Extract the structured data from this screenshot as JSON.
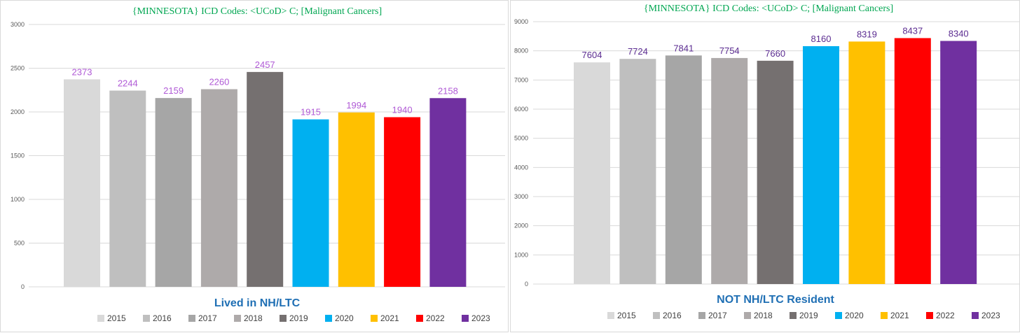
{
  "chart_data": [
    {
      "type": "bar",
      "title": "{MINNESOTA}   ICD Codes: <UCoD> C;  [Malignant Cancers]",
      "caption": "Lived in NH/LTC",
      "categories": [
        "2015",
        "2016",
        "2017",
        "2018",
        "2019",
        "2020",
        "2021",
        "2022",
        "2023"
      ],
      "values": [
        2373,
        2244,
        2159,
        2260,
        2457,
        1915,
        1994,
        1940,
        2158
      ],
      "colors": [
        "#d9d9d9",
        "#bfbfbf",
        "#a6a6a6",
        "#aeaaaa",
        "#757070",
        "#00b0f0",
        "#ffc000",
        "#ff0000",
        "#7030a0"
      ],
      "ylim": [
        0,
        3000
      ],
      "yticks": [
        0,
        500,
        1000,
        1500,
        2000,
        2500,
        3000
      ],
      "grid": true,
      "legend_position": "bottom",
      "title_color": "#00a651",
      "label_color": "#b05ad6"
    },
    {
      "type": "bar",
      "title": "{MINNESOTA}   ICD Codes: <UCoD> C;  [Malignant Cancers]",
      "caption": "NOT NH/LTC Resident",
      "categories": [
        "2015",
        "2016",
        "2017",
        "2018",
        "2019",
        "2020",
        "2021",
        "2022",
        "2023"
      ],
      "values": [
        7604,
        7724,
        7841,
        7754,
        7660,
        8160,
        8319,
        8437,
        8340
      ],
      "colors": [
        "#d9d9d9",
        "#bfbfbf",
        "#a6a6a6",
        "#aeaaaa",
        "#757070",
        "#00b0f0",
        "#ffc000",
        "#ff0000",
        "#7030a0"
      ],
      "ylim": [
        0,
        9000
      ],
      "yticks": [
        0,
        1000,
        2000,
        3000,
        4000,
        5000,
        6000,
        7000,
        8000,
        9000
      ],
      "grid": true,
      "legend_position": "bottom",
      "title_color": "#00a651",
      "label_color": "#5b2c91"
    }
  ]
}
